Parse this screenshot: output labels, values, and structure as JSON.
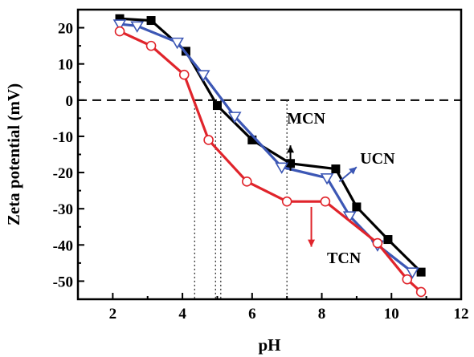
{
  "chart_data": {
    "type": "line",
    "xlabel": "pH",
    "ylabel": "Zeta potential (mV)",
    "xlim": [
      1,
      12
    ],
    "ylim": [
      -55,
      25
    ],
    "xticks": [
      2,
      4,
      6,
      8,
      10,
      12
    ],
    "yticks": [
      20,
      10,
      0,
      -10,
      -20,
      -30,
      -40,
      -50
    ],
    "zero_line": 0,
    "isoelectric_points": [
      4.35,
      4.95,
      5.1,
      7.0
    ],
    "series": [
      {
        "name": "MCN",
        "color": "#000000",
        "marker": "filled-square",
        "x": [
          2.2,
          3.1,
          4.1,
          5.0,
          6.0,
          7.1,
          8.4,
          9.0,
          9.9,
          10.85
        ],
        "y": [
          22.5,
          22.0,
          13.5,
          -1.5,
          -11.0,
          -17.5,
          -19.0,
          -29.5,
          -38.5,
          -47.5
        ]
      },
      {
        "name": "UCN",
        "color": "#3c57b5",
        "marker": "open-down-triangle",
        "x": [
          2.2,
          2.7,
          3.85,
          4.6,
          5.5,
          6.85,
          8.15,
          8.8,
          9.6,
          10.6
        ],
        "y": [
          21.0,
          20.5,
          16.0,
          7.0,
          -4.5,
          -18.5,
          -21.5,
          -32.0,
          -40.0,
          -47.5
        ]
      },
      {
        "name": "TCN",
        "color": "#e0242b",
        "marker": "open-circle",
        "x": [
          2.2,
          3.1,
          4.05,
          4.75,
          5.85,
          7.0,
          8.1,
          9.6,
          10.45,
          10.85
        ],
        "y": [
          19.0,
          15.0,
          7.0,
          -11.0,
          -22.5,
          -28.0,
          -28.0,
          -39.5,
          -49.5,
          -53.0
        ]
      }
    ],
    "annotations": [
      {
        "text": "MCN",
        "x": 7.0,
        "y": -6.5
      },
      {
        "text": "UCN",
        "x": 9.1,
        "y": -17.5
      },
      {
        "text": "TCN",
        "x": 8.15,
        "y": -45.0
      }
    ]
  }
}
